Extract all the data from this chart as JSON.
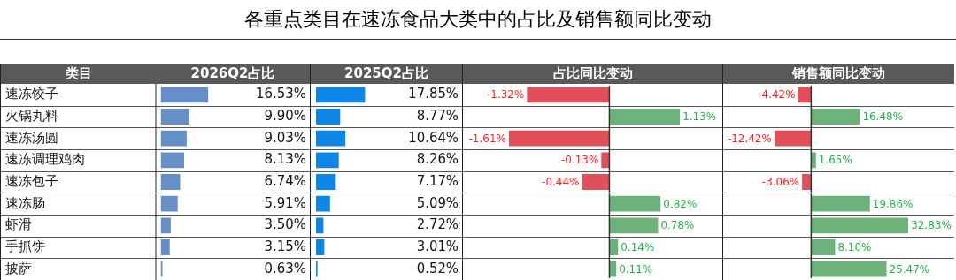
{
  "chart_data": [
    {
      "type": "bar",
      "orientation": "horizontal",
      "subtitle": "2026Q2占比",
      "ylabel": "类目",
      "tick_labels": "y",
      "grid": "y",
      "categories": [
        "速冻饺子",
        "火锅丸料",
        "速冻汤圆",
        "速冻调理鸡肉",
        "速冻包子",
        "速冻肠",
        "虾滑",
        "手抓饼",
        "披萨"
      ],
      "series": [
        {
          "color": "#658fc6",
          "values": [
            16.53,
            9.9,
            9.03,
            8.13,
            6.74,
            5.91,
            3.5,
            3.15,
            0.63
          ],
          "value_labels": [
            "16.53%",
            "9.90%",
            "9.03%",
            "8.13%",
            "6.74%",
            "5.91%",
            "3.50%",
            "3.15%",
            "0.63%"
          ]
        }
      ]
    },
    {
      "type": "bar",
      "orientation": "horizontal",
      "subtitle": "2025Q2占比",
      "tick_labels": false,
      "grid": "y",
      "categories": [
        null,
        null,
        null,
        null,
        null,
        null,
        null,
        null,
        null
      ],
      "series": [
        {
          "color": "#0e86e8",
          "values": [
            17.85,
            8.77,
            10.64,
            8.26,
            7.17,
            5.09,
            2.72,
            3.01,
            0.52
          ],
          "value_labels": [
            "17.85%",
            "8.77%",
            "10.64%",
            "8.26%",
            "7.17%",
            "5.09%",
            "2.72%",
            "3.01%",
            "0.52%"
          ]
        }
      ]
    },
    {
      "type": "bar",
      "orientation": "horizontal",
      "title": "各重点类目在速冻食品大类中的占比及销售额同比变动",
      "subtitle": "占比同比变动",
      "tick_labels": false,
      "grid": "y",
      "categories": [
        null,
        null,
        null,
        null,
        null,
        null,
        null,
        null,
        null
      ],
      "series": [
        {
          "colors": [
            "#e0505a",
            "#6db27b",
            "#e0505a",
            "#e0505a",
            "#e0505a",
            "#6db27b",
            "#6db27b",
            "#6db27b",
            "#6db27b"
          ],
          "values": [
            -1.32,
            1.13,
            -1.61,
            -0.13,
            -0.44,
            0.82,
            0.78,
            0.14,
            0.11
          ],
          "value_labels": [
            "-1.32%",
            "1.13%",
            "-1.61%",
            "-0.13%",
            "-0.44%",
            "0.82%",
            "0.78%",
            "0.14%",
            "0.11%"
          ]
        }
      ]
    },
    {
      "type": "bar",
      "orientation": "horizontal",
      "subtitle": "销售额同比变动",
      "tick_labels": false,
      "grid": "y",
      "categories": [
        null,
        null,
        null,
        null,
        null,
        null,
        null,
        null,
        null
      ],
      "series": [
        {
          "colors": [
            "#e0505a",
            "#6db27b",
            "#e0505a",
            "#6db27b",
            "#e0505a",
            "#6db27b",
            "#6db27b",
            "#6db27b",
            "#6db27b"
          ],
          "values": [
            -4.42,
            16.48,
            -12.42,
            1.65,
            -3.06,
            19.86,
            32.83,
            8.1,
            25.47
          ],
          "value_labels": [
            "-4.42%",
            "16.48%",
            "-12.42%",
            "1.65%",
            "-3.06%",
            "19.86%",
            "32.83%",
            "8.10%",
            "25.47%"
          ]
        }
      ]
    }
  ]
}
